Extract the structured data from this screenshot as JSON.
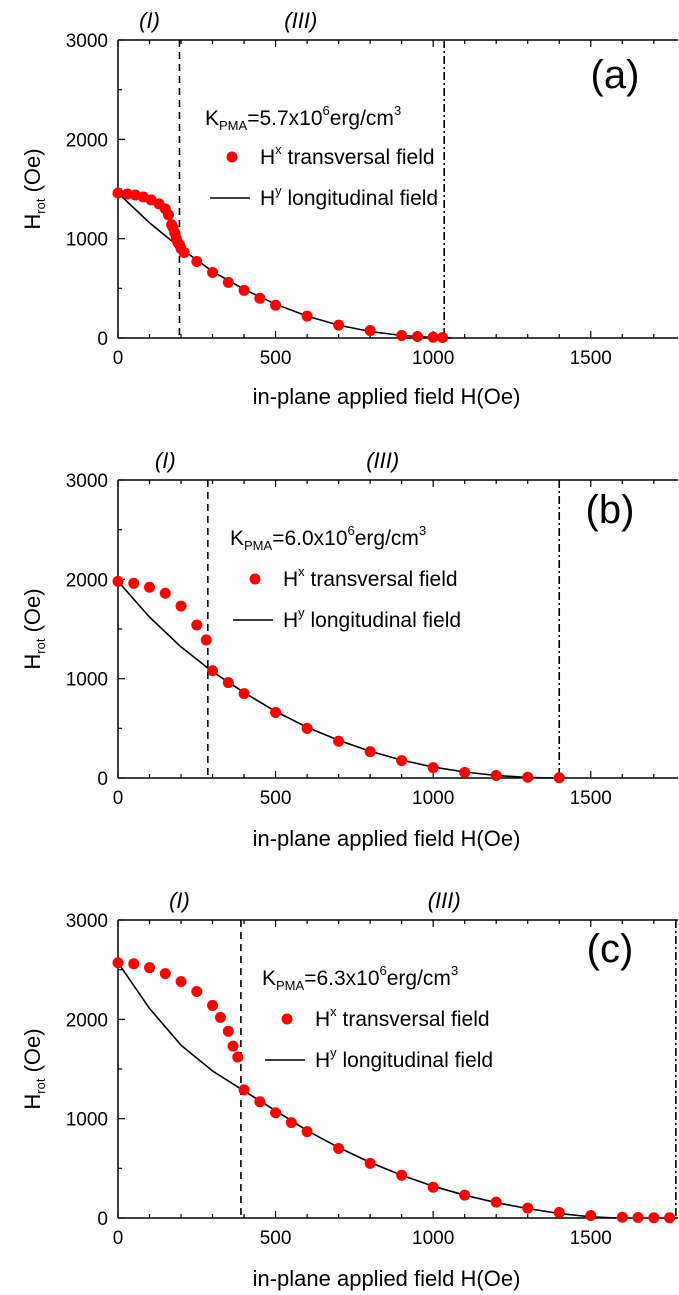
{
  "chart_data": [
    {
      "type": "scatter",
      "panel_label": "(a)",
      "xlabel": "in-plane applied field H(Oe)",
      "ylabel_main": "H",
      "ylabel_sub": "rot",
      "ylabel_unit": " (Oe)",
      "xlim": [
        0,
        1780
      ],
      "ylim": [
        0,
        3000
      ],
      "xticks": [
        0,
        500,
        1000,
        1500
      ],
      "yticks": [
        0,
        1000,
        2000,
        3000
      ],
      "region_labels": [
        {
          "text": "(I)",
          "x": 100
        },
        {
          "text": "(III)",
          "x": 580
        }
      ],
      "dashed_line_x": 195,
      "dashdot_line_x": 1035,
      "annotation": {
        "k": "K",
        "k_sub": "PMA",
        "value": "=5.7x10",
        "exp": "6",
        "unit": "erg/cm",
        "unit_sup": "3"
      },
      "legend": {
        "scatter": {
          "main": "H",
          "sup": "x",
          "rest": " transversal  field"
        },
        "line": {
          "main": "H",
          "sup": "y",
          "rest": " longitudinal field"
        }
      },
      "colors": {
        "scatter": "#ff0000",
        "line": "#000000"
      },
      "series": [
        {
          "kind": "scatter",
          "x": [
            0,
            30,
            55,
            80,
            105,
            130,
            150,
            160,
            170,
            175,
            180,
            185,
            190,
            195,
            200,
            210,
            250,
            300,
            350,
            400,
            450,
            500,
            600,
            700,
            800,
            900,
            950,
            1000,
            1030
          ],
          "y": [
            1460,
            1450,
            1440,
            1420,
            1390,
            1350,
            1300,
            1240,
            1140,
            1110,
            1060,
            1000,
            960,
            940,
            900,
            860,
            770,
            660,
            560,
            480,
            400,
            330,
            220,
            130,
            75,
            25,
            15,
            8,
            5
          ]
        },
        {
          "kind": "line",
          "x": [
            0,
            100,
            200,
            300,
            400,
            500,
            600,
            700,
            800,
            900,
            1000,
            1060
          ],
          "y": [
            1460,
            1160,
            900,
            670,
            490,
            340,
            220,
            130,
            65,
            25,
            5,
            0
          ]
        }
      ]
    },
    {
      "type": "scatter",
      "panel_label": "(b)",
      "xlabel": "in-plane applied field H(Oe)",
      "ylabel_main": "H",
      "ylabel_sub": "rot",
      "ylabel_unit": " (Oe)",
      "xlim": [
        0,
        1780
      ],
      "ylim": [
        0,
        3000
      ],
      "xticks": [
        0,
        500,
        1000,
        1500
      ],
      "yticks": [
        0,
        1000,
        2000,
        3000
      ],
      "region_labels": [
        {
          "text": "(I)",
          "x": 150
        },
        {
          "text": "(III)",
          "x": 840
        }
      ],
      "dashed_line_x": 285,
      "dashdot_line_x": 1400,
      "annotation": {
        "k": "K",
        "k_sub": "PMA",
        "value": "=6.0x10",
        "exp": "6",
        "unit": "erg/cm",
        "unit_sup": "3"
      },
      "legend": {
        "scatter": {
          "main": "H",
          "sup": "x",
          "rest": " transversal  field"
        },
        "line": {
          "main": "H",
          "sup": "y",
          "rest": " longitudinal field"
        }
      },
      "colors": {
        "scatter": "#ff0000",
        "line": "#000000"
      },
      "series": [
        {
          "kind": "scatter",
          "x": [
            0,
            50,
            100,
            150,
            200,
            250,
            280,
            300,
            350,
            400,
            500,
            600,
            700,
            800,
            900,
            1000,
            1100,
            1200,
            1300,
            1400
          ],
          "y": [
            1980,
            1960,
            1920,
            1860,
            1730,
            1540,
            1390,
            1080,
            960,
            850,
            660,
            500,
            370,
            265,
            175,
            105,
            55,
            25,
            8,
            3
          ]
        },
        {
          "kind": "line",
          "x": [
            0,
            100,
            200,
            300,
            400,
            500,
            600,
            700,
            800,
            900,
            1000,
            1100,
            1200,
            1300,
            1380
          ],
          "y": [
            1980,
            1620,
            1320,
            1070,
            860,
            670,
            510,
            380,
            270,
            180,
            110,
            60,
            25,
            6,
            0
          ]
        }
      ]
    },
    {
      "type": "scatter",
      "panel_label": "(c)",
      "xlabel": "in-plane applied field H(Oe)",
      "ylabel_main": "H",
      "ylabel_sub": "rot",
      "ylabel_unit": " (Oe)",
      "xlim": [
        0,
        1780
      ],
      "ylim": [
        0,
        3000
      ],
      "xticks": [
        0,
        500,
        1000,
        1500
      ],
      "yticks": [
        0,
        1000,
        2000,
        3000
      ],
      "region_labels": [
        {
          "text": "(I)",
          "x": 195
        },
        {
          "text": "(III)",
          "x": 1035
        }
      ],
      "dashed_line_x": 390,
      "dashdot_line_x": 1770,
      "annotation": {
        "k": "K",
        "k_sub": "PMA",
        "value": "=6.3x10",
        "exp": "6",
        "unit": "erg/cm",
        "unit_sup": "3"
      },
      "legend": {
        "scatter": {
          "main": "H",
          "sup": "x",
          "rest": " transversal  field"
        },
        "line": {
          "main": "H",
          "sup": "y",
          "rest": " longitudinal field"
        }
      },
      "colors": {
        "scatter": "#ff0000",
        "line": "#000000"
      },
      "series": [
        {
          "kind": "scatter",
          "x": [
            0,
            50,
            100,
            150,
            200,
            250,
            300,
            325,
            350,
            365,
            380,
            400,
            450,
            500,
            550,
            600,
            700,
            800,
            900,
            1000,
            1100,
            1200,
            1300,
            1400,
            1500,
            1600,
            1650,
            1700,
            1750
          ],
          "y": [
            2570,
            2560,
            2520,
            2460,
            2380,
            2280,
            2140,
            2020,
            1880,
            1730,
            1620,
            1290,
            1170,
            1060,
            960,
            870,
            700,
            550,
            430,
            310,
            230,
            160,
            100,
            55,
            25,
            8,
            5,
            3,
            2
          ]
        },
        {
          "kind": "line",
          "x": [
            0,
            100,
            200,
            300,
            400,
            500,
            600,
            700,
            800,
            900,
            1000,
            1100,
            1200,
            1300,
            1400,
            1500,
            1580
          ],
          "y": [
            2570,
            2110,
            1740,
            1480,
            1280,
            1080,
            880,
            710,
            560,
            430,
            320,
            230,
            155,
            95,
            45,
            12,
            0
          ]
        }
      ]
    }
  ]
}
